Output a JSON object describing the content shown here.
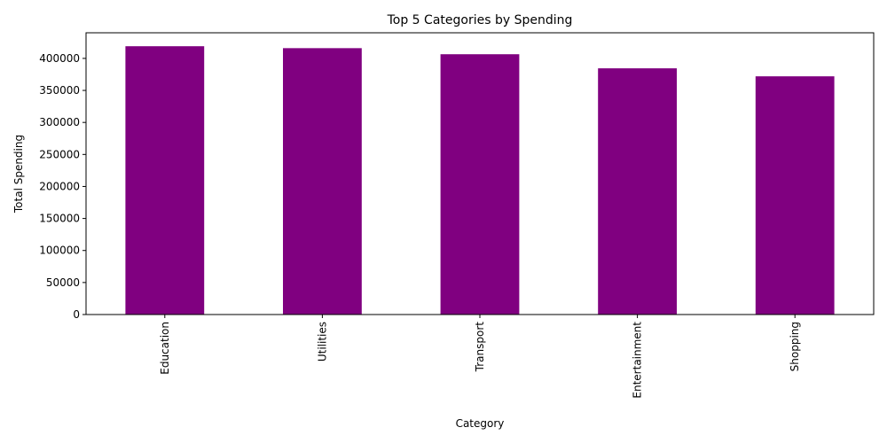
{
  "chart_data": {
    "type": "bar",
    "title": "Top 5 Categories by Spending",
    "xlabel": "Category",
    "ylabel": "Total Spending",
    "categories": [
      "Education",
      "Utilities",
      "Transport",
      "Entertainment",
      "Shopping"
    ],
    "values": [
      419000,
      416000,
      406500,
      384500,
      372000
    ],
    "ylim": [
      0,
      440000
    ],
    "yticks": [
      0,
      50000,
      100000,
      150000,
      200000,
      250000,
      300000,
      350000,
      400000
    ],
    "ytick_labels": [
      "0",
      "50000",
      "100000",
      "150000",
      "200000",
      "250000",
      "300000",
      "350000",
      "400000"
    ],
    "bar_color": "#800080",
    "grid": false,
    "legend": "none",
    "xtick_rotation": "vertical"
  }
}
